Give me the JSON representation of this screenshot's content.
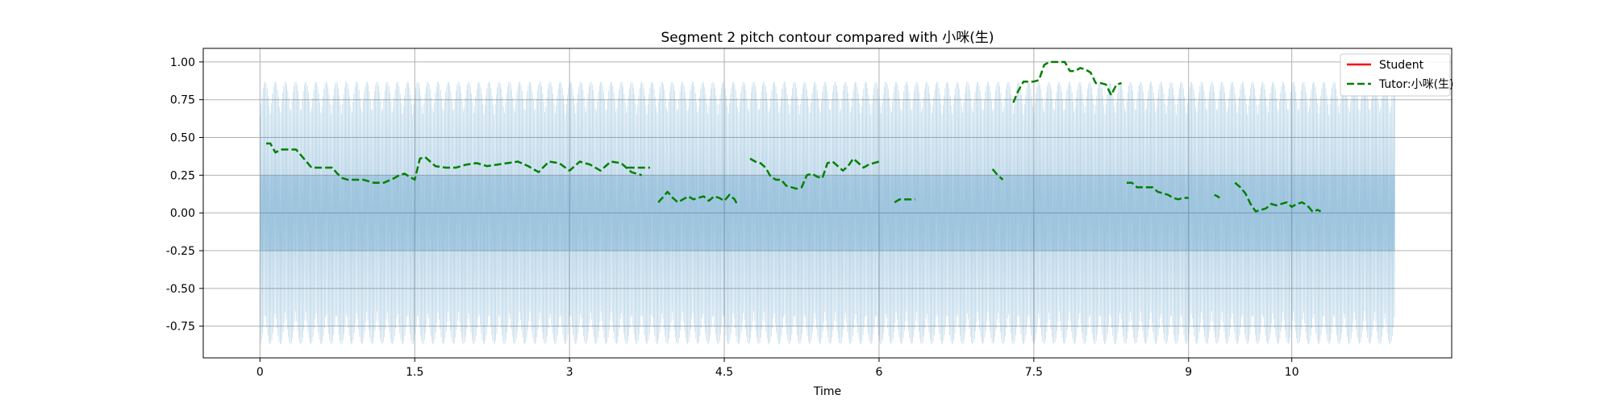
{
  "chart_data": {
    "type": "line",
    "title": "Segment 2 pitch contour compared with 小咪(生)",
    "xlabel": "Time",
    "ylabel": "",
    "xlim": [
      -0.55,
      11.55
    ],
    "ylim": [
      -0.96,
      1.09
    ],
    "xticks": [
      0,
      1.5,
      3,
      4.5,
      6,
      7.5,
      9,
      10
    ],
    "xtick_labels": [
      "0",
      "1.5",
      "3",
      "4.5",
      "6",
      "7.5",
      "9",
      "10"
    ],
    "yticks": [
      -0.75,
      -0.5,
      -0.25,
      0.0,
      0.25,
      0.5,
      0.75,
      1.0
    ],
    "ytick_labels": [
      "-0.75",
      "-0.50",
      "-0.25",
      "0.00",
      "0.25",
      "0.50",
      "0.75",
      "1.00"
    ],
    "grid": true,
    "legend_position": "top-right",
    "waveform": {
      "x_start": 0,
      "x_end": 11.0,
      "outer_amplitude": 0.87,
      "inner_amplitude": 0.38,
      "color": "#1f77b4"
    },
    "series": [
      {
        "name": "Student",
        "color": "#ff0000",
        "style": "solid",
        "segments": []
      },
      {
        "name": "Tutor:小咪(生)",
        "color": "#008000",
        "style": "dashed",
        "segments": [
          [
            [
              0.06,
              0.46
            ],
            [
              0.1,
              0.46
            ],
            [
              0.15,
              0.4
            ],
            [
              0.2,
              0.42
            ],
            [
              0.25,
              0.42
            ],
            [
              0.3,
              0.42
            ],
            [
              0.35,
              0.42
            ],
            [
              0.4,
              0.38
            ],
            [
              0.45,
              0.34
            ],
            [
              0.5,
              0.3
            ],
            [
              0.55,
              0.3
            ],
            [
              0.6,
              0.3
            ],
            [
              0.65,
              0.3
            ],
            [
              0.7,
              0.3
            ],
            [
              0.75,
              0.26
            ],
            [
              0.8,
              0.23
            ],
            [
              0.85,
              0.22
            ],
            [
              0.9,
              0.22
            ],
            [
              1.0,
              0.22
            ],
            [
              1.1,
              0.2
            ],
            [
              1.2,
              0.2
            ],
            [
              1.3,
              0.23
            ],
            [
              1.35,
              0.25
            ],
            [
              1.4,
              0.26
            ],
            [
              1.45,
              0.24
            ],
            [
              1.5,
              0.22
            ],
            [
              1.55,
              0.36
            ],
            [
              1.6,
              0.37
            ],
            [
              1.65,
              0.34
            ],
            [
              1.7,
              0.31
            ],
            [
              1.8,
              0.3
            ],
            [
              1.9,
              0.3
            ],
            [
              2.0,
              0.32
            ],
            [
              2.1,
              0.33
            ],
            [
              2.2,
              0.31
            ],
            [
              2.3,
              0.32
            ],
            [
              2.4,
              0.33
            ],
            [
              2.5,
              0.34
            ],
            [
              2.6,
              0.31
            ],
            [
              2.7,
              0.27
            ],
            [
              2.8,
              0.34
            ],
            [
              2.9,
              0.33
            ],
            [
              3.0,
              0.28
            ],
            [
              3.1,
              0.34
            ],
            [
              3.2,
              0.32
            ],
            [
              3.3,
              0.28
            ],
            [
              3.4,
              0.34
            ],
            [
              3.5,
              0.33
            ],
            [
              3.6,
              0.27
            ],
            [
              3.7,
              0.25
            ]
          ],
          [
            [
              3.56,
              0.3
            ],
            [
              3.62,
              0.3
            ],
            [
              3.7,
              0.3
            ],
            [
              3.78,
              0.3
            ]
          ],
          [
            [
              3.86,
              0.07
            ],
            [
              3.9,
              0.1
            ],
            [
              3.95,
              0.14
            ],
            [
              4.0,
              0.1
            ],
            [
              4.05,
              0.07
            ],
            [
              4.1,
              0.09
            ],
            [
              4.15,
              0.11
            ],
            [
              4.2,
              0.09
            ],
            [
              4.25,
              0.1
            ],
            [
              4.3,
              0.11
            ],
            [
              4.35,
              0.08
            ],
            [
              4.4,
              0.11
            ],
            [
              4.45,
              0.1
            ],
            [
              4.5,
              0.08
            ],
            [
              4.55,
              0.12
            ],
            [
              4.6,
              0.09
            ],
            [
              4.63,
              0.05
            ]
          ],
          [
            [
              4.75,
              0.36
            ],
            [
              4.8,
              0.34
            ],
            [
              4.85,
              0.33
            ],
            [
              4.9,
              0.3
            ],
            [
              4.95,
              0.24
            ],
            [
              5.0,
              0.22
            ],
            [
              5.05,
              0.22
            ],
            [
              5.1,
              0.18
            ],
            [
              5.15,
              0.17
            ],
            [
              5.2,
              0.16
            ],
            [
              5.25,
              0.17
            ],
            [
              5.3,
              0.25
            ],
            [
              5.35,
              0.26
            ],
            [
              5.4,
              0.24
            ],
            [
              5.45,
              0.23
            ],
            [
              5.5,
              0.33
            ],
            [
              5.55,
              0.34
            ],
            [
              5.6,
              0.31
            ],
            [
              5.65,
              0.28
            ],
            [
              5.7,
              0.31
            ],
            [
              5.75,
              0.36
            ],
            [
              5.8,
              0.33
            ],
            [
              5.85,
              0.3
            ],
            [
              5.9,
              0.32
            ],
            [
              5.95,
              0.33
            ],
            [
              6.0,
              0.34
            ]
          ],
          [
            [
              6.15,
              0.07
            ],
            [
              6.2,
              0.09
            ],
            [
              6.25,
              0.09
            ],
            [
              6.3,
              0.09
            ],
            [
              6.35,
              0.09
            ]
          ],
          [
            [
              7.1,
              0.29
            ],
            [
              7.15,
              0.25
            ],
            [
              7.2,
              0.22
            ]
          ],
          [
            [
              7.3,
              0.73
            ],
            [
              7.35,
              0.81
            ],
            [
              7.4,
              0.87
            ],
            [
              7.45,
              0.87
            ],
            [
              7.5,
              0.87
            ],
            [
              7.55,
              0.88
            ],
            [
              7.6,
              0.98
            ],
            [
              7.65,
              1.0
            ],
            [
              7.7,
              1.0
            ],
            [
              7.75,
              1.0
            ],
            [
              7.8,
              1.0
            ],
            [
              7.85,
              0.94
            ],
            [
              7.9,
              0.94
            ],
            [
              7.95,
              0.96
            ],
            [
              8.0,
              0.95
            ],
            [
              8.05,
              0.93
            ],
            [
              8.1,
              0.86
            ],
            [
              8.15,
              0.86
            ],
            [
              8.2,
              0.85
            ],
            [
              8.25,
              0.78
            ],
            [
              8.3,
              0.85
            ],
            [
              8.35,
              0.86
            ]
          ],
          [
            [
              8.4,
              0.2
            ],
            [
              8.45,
              0.2
            ],
            [
              8.5,
              0.17
            ],
            [
              8.55,
              0.17
            ],
            [
              8.6,
              0.17
            ],
            [
              8.65,
              0.17
            ],
            [
              8.7,
              0.14
            ],
            [
              8.75,
              0.13
            ],
            [
              8.8,
              0.12
            ],
            [
              8.85,
              0.1
            ],
            [
              8.9,
              0.09
            ],
            [
              8.95,
              0.1
            ],
            [
              9.0,
              0.1
            ]
          ],
          [
            [
              9.25,
              0.12
            ],
            [
              9.28,
              0.11
            ],
            [
              9.3,
              0.1
            ]
          ],
          [
            [
              9.45,
              0.2
            ],
            [
              9.5,
              0.17
            ],
            [
              9.55,
              0.13
            ],
            [
              9.6,
              0.06
            ],
            [
              9.65,
              0.01
            ],
            [
              9.7,
              0.02
            ],
            [
              9.75,
              0.03
            ],
            [
              9.8,
              0.06
            ],
            [
              9.85,
              0.05
            ],
            [
              9.9,
              0.06
            ],
            [
              9.95,
              0.07
            ],
            [
              10.0,
              0.04
            ],
            [
              10.05,
              0.06
            ],
            [
              10.1,
              0.07
            ],
            [
              10.15,
              0.05
            ],
            [
              10.2,
              0.01
            ],
            [
              10.25,
              0.02
            ],
            [
              10.28,
              0.01
            ]
          ]
        ]
      }
    ]
  }
}
